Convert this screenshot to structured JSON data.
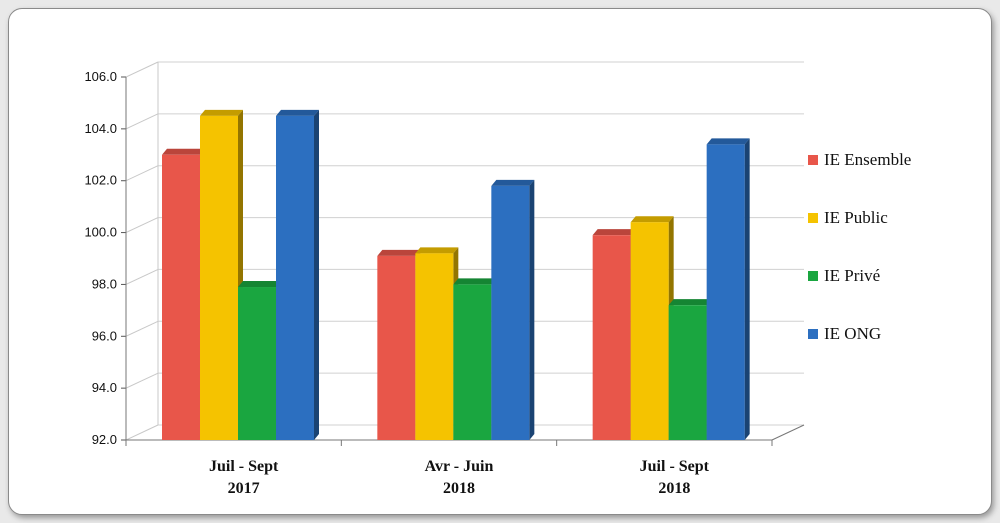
{
  "chart_data": {
    "type": "bar",
    "categories": [
      [
        "Juil - Sept",
        "2017"
      ],
      [
        "Avr - Juin",
        "2018"
      ],
      [
        "Juil - Sept",
        "2018"
      ]
    ],
    "series": [
      {
        "name": "IE Ensemble",
        "color": "#e8564a",
        "values": [
          103.0,
          99.1,
          99.9
        ]
      },
      {
        "name": "IE Public",
        "color": "#f5c300",
        "values": [
          104.5,
          99.2,
          100.4
        ]
      },
      {
        "name": "IE Privé",
        "color": "#1aa640",
        "values": [
          97.9,
          98.0,
          97.2
        ]
      },
      {
        "name": "IE ONG",
        "color": "#2c6fc0",
        "values": [
          104.5,
          101.8,
          103.4
        ]
      }
    ],
    "yticks": [
      "92.0",
      "94.0",
      "96.0",
      "98.0",
      "100.0",
      "102.0",
      "104.0",
      "106.0"
    ],
    "ylim": [
      92,
      106
    ],
    "grid": true,
    "legend_position": "right"
  }
}
